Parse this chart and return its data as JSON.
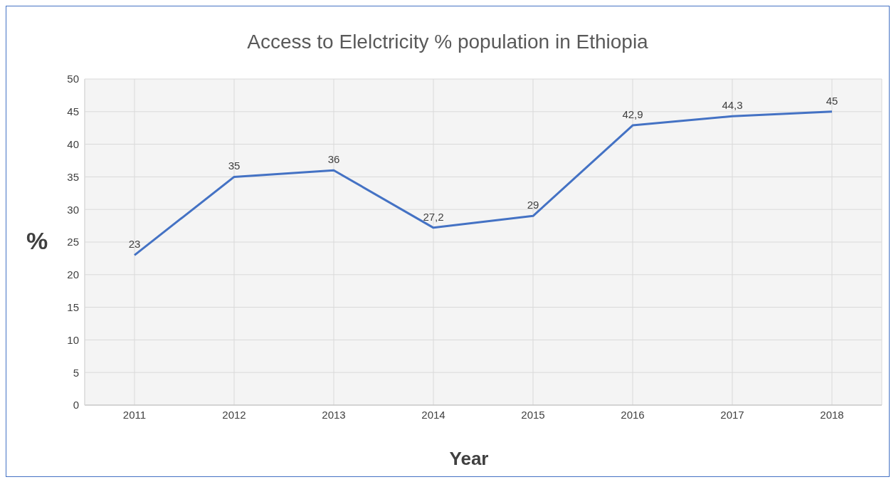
{
  "chart_data": {
    "type": "line",
    "title": "Access to Elelctricity % population in Ethiopia",
    "xlabel": "Year",
    "ylabel": "%",
    "categories": [
      "2011",
      "2012",
      "2013",
      "2014",
      "2015",
      "2016",
      "2017",
      "2018"
    ],
    "series": [
      {
        "color": "#4472c4",
        "values": [
          23,
          35,
          36,
          27.2,
          29,
          42.9,
          44.3,
          45
        ],
        "value_labels": [
          "23",
          "35",
          "36",
          "27,2",
          "29",
          "42,9",
          "44,3",
          "45"
        ]
      }
    ],
    "ylim": [
      0,
      50
    ],
    "yticks": [
      0,
      5,
      10,
      15,
      20,
      25,
      30,
      35,
      40,
      45,
      50
    ],
    "grid": true,
    "legend": false,
    "marker": "none",
    "line_style": "solid"
  }
}
